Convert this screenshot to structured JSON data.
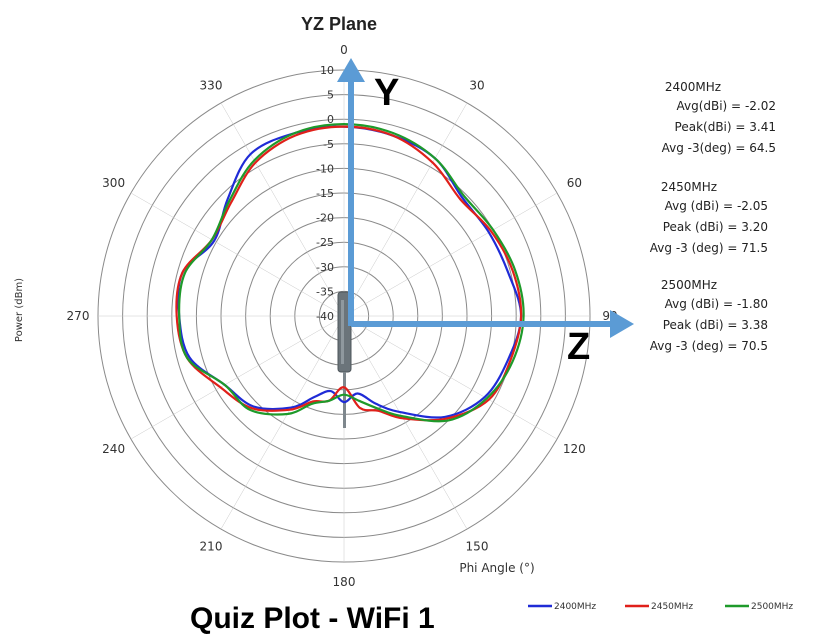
{
  "page_title_fragment": "Quiz Plot - WiFi 1",
  "axis_labels": {
    "y": "Y",
    "z": "Z"
  },
  "stats": [
    {
      "header": "2400MHz",
      "rows": [
        {
          "label": "Avg(dBi) =",
          "value": "-2.02"
        },
        {
          "label": "Peak(dBi) =",
          "value": "3.41"
        },
        {
          "label": "Avg -3(deg) =",
          "value": "64.5"
        }
      ]
    },
    {
      "header": "2450MHz",
      "rows": [
        {
          "label": "Avg (dBi) =",
          "value": "-2.05"
        },
        {
          "label": "Peak (dBi) =",
          "value": "3.20"
        },
        {
          "label": "Avg -3 (deg) =",
          "value": "71.5"
        }
      ]
    },
    {
      "header": "2500MHz",
      "rows": [
        {
          "label": "Avg (dBi) =",
          "value": "-1.80"
        },
        {
          "label": "Peak (dBi) =",
          "value": "3.38"
        },
        {
          "label": "Avg -3 (deg) =",
          "value": "70.5"
        }
      ]
    }
  ],
  "colors": {
    "s2400": "#1f2bd6",
    "s2450": "#e0201a",
    "s2500": "#1e9a2a",
    "grid": "#8a8a8a",
    "arrow": "#5b9bd5",
    "antenna": "#707a80"
  },
  "chart_data": {
    "type": "polar-line",
    "title": "YZ Plane",
    "radial_label": "Power (dBm)",
    "angular_label": "Phi Angle (°)",
    "r_range": [
      -40,
      10
    ],
    "r_ticks": [
      10,
      5,
      0,
      -5,
      -10,
      -15,
      -20,
      -25,
      -30,
      -35,
      -40
    ],
    "r_tick_labels": [
      "10",
      "5",
      "0",
      "-5",
      "-10",
      "-15",
      "-20",
      "-25",
      "-30",
      "-35",
      "-40"
    ],
    "angle_ticks": [
      0,
      30,
      60,
      90,
      120,
      150,
      180,
      210,
      240,
      270,
      300,
      330
    ],
    "angle_tick_labels": [
      "0",
      "30",
      "60",
      "90",
      "120",
      "150",
      "180",
      "210",
      "240",
      "270",
      "300",
      "330"
    ],
    "angle_direction": "clockwise, 0 at top",
    "grid": true,
    "legend_position": "bottom-right",
    "angles": [
      0,
      15,
      30,
      45,
      60,
      75,
      90,
      105,
      120,
      135,
      150,
      160,
      170,
      180,
      190,
      200,
      210,
      225,
      240,
      255,
      270,
      285,
      300,
      315,
      330,
      345
    ],
    "series": [
      {
        "name": "2400MHz",
        "values": [
          -1.5,
          -2.0,
          -3.0,
          -6.0,
          -6.0,
          -5.5,
          -4.0,
          -5.5,
          -7.0,
          -11.0,
          -17.5,
          -21.0,
          -24.0,
          -22.5,
          -24.5,
          -22.5,
          -18.5,
          -14.0,
          -12.0,
          -7.5,
          -6.5,
          -6.0,
          -9.5,
          -6.5,
          -2.0,
          -1.5
        ]
      },
      {
        "name": "2450MHz",
        "values": [
          -1.5,
          -2.0,
          -4.0,
          -6.5,
          -5.5,
          -4.5,
          -4.0,
          -5.0,
          -6.0,
          -10.5,
          -16.0,
          -19.5,
          -21.0,
          -25.5,
          -22.5,
          -21.5,
          -18.0,
          -13.5,
          -11.0,
          -7.0,
          -6.0,
          -6.0,
          -9.0,
          -7.5,
          -4.0,
          -2.0
        ]
      },
      {
        "name": "2500MHz",
        "values": [
          -1.0,
          -1.5,
          -3.0,
          -5.5,
          -5.0,
          -4.0,
          -3.5,
          -4.5,
          -6.5,
          -10.0,
          -16.5,
          -20.0,
          -22.5,
          -24.0,
          -22.5,
          -21.0,
          -17.0,
          -13.0,
          -12.0,
          -7.0,
          -6.5,
          -6.5,
          -9.0,
          -7.0,
          -3.5,
          -1.5
        ]
      }
    ],
    "legend": [
      "2400MHz",
      "2450MHz",
      "2500MHz"
    ]
  }
}
